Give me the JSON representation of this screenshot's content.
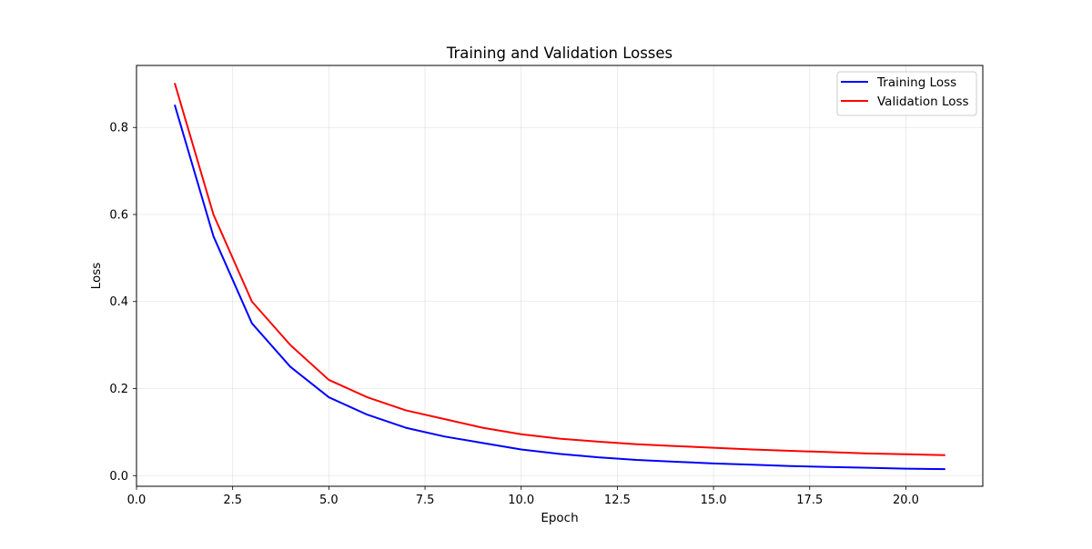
{
  "chart_data": {
    "type": "line",
    "title": "Training and Validation Losses",
    "xlabel": "Epoch",
    "ylabel": "Loss",
    "xlim": [
      0,
      22
    ],
    "ylim": [
      -0.0245,
      0.9425
    ],
    "xticks": [
      "0.0",
      "2.5",
      "5.0",
      "7.5",
      "10.0",
      "12.5",
      "15.0",
      "17.5",
      "20.0"
    ],
    "yticks": [
      "0.0",
      "0.2",
      "0.4",
      "0.6",
      "0.8"
    ],
    "grid": true,
    "legend_position": "top-right",
    "x": [
      1,
      2,
      3,
      4,
      5,
      6,
      7,
      8,
      9,
      10,
      11,
      12,
      13,
      14,
      15,
      16,
      17,
      18,
      19,
      20,
      21
    ],
    "series": [
      {
        "name": "Training Loss",
        "color": "#0000ff",
        "values": [
          0.85,
          0.55,
          0.35,
          0.25,
          0.18,
          0.14,
          0.11,
          0.09,
          0.075,
          0.06,
          0.05,
          0.042,
          0.036,
          0.032,
          0.028,
          0.025,
          0.022,
          0.02,
          0.018,
          0.016,
          0.015
        ]
      },
      {
        "name": "Validation Loss",
        "color": "#ff0000",
        "values": [
          0.9,
          0.6,
          0.4,
          0.3,
          0.22,
          0.18,
          0.15,
          0.13,
          0.11,
          0.095,
          0.085,
          0.078,
          0.072,
          0.068,
          0.064,
          0.06,
          0.057,
          0.054,
          0.051,
          0.049,
          0.047
        ]
      }
    ]
  }
}
